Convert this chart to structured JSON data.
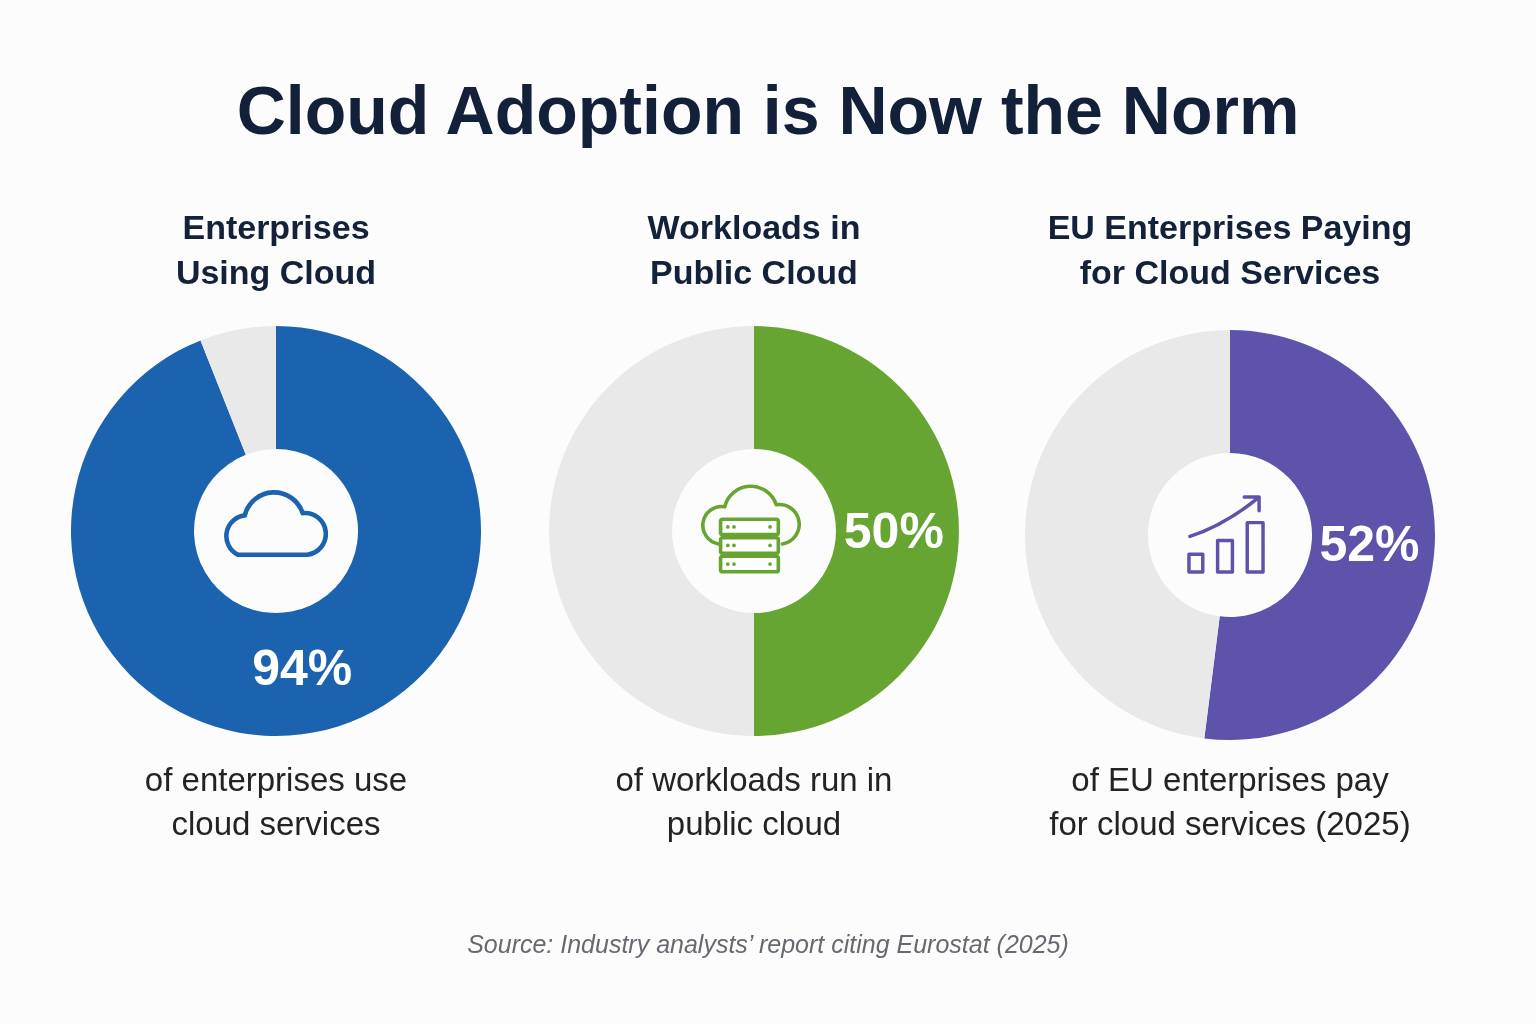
{
  "chart_data": [
    {
      "type": "other",
      "title": "Cloud Adoption is Now the Norm"
    },
    {
      "type": "donut",
      "title": "Enterprises Using Cloud",
      "categories": [
        null,
        null
      ],
      "values": [
        94,
        6
      ],
      "colors": [
        "#1b63ae",
        "#e9e9e9"
      ],
      "value_labels": [
        "94%",
        null
      ],
      "annotations": [
        "of enterprises use cloud services"
      ]
    },
    {
      "type": "donut",
      "title": "Workloads in Public Cloud",
      "categories": [
        null,
        null
      ],
      "values": [
        50,
        50
      ],
      "colors": [
        "#67a532",
        "#e9e9e9"
      ],
      "value_labels": [
        "50%",
        null
      ],
      "annotations": [
        "of workloads run in public cloud"
      ]
    },
    {
      "type": "donut",
      "title": "EU Enterprises Paying for Cloud Services",
      "categories": [
        null,
        null
      ],
      "values": [
        52,
        48
      ],
      "colors": [
        "#5e53ab",
        "#e9e9e9"
      ],
      "value_labels": [
        "52%",
        null
      ],
      "annotations": [
        "of EU enterprises pay for cloud services (2025)"
      ]
    },
    {
      "type": "other",
      "annotations": [
        "Source: Industry analysts’ report citing Eurostat (2025)"
      ]
    }
  ]
}
